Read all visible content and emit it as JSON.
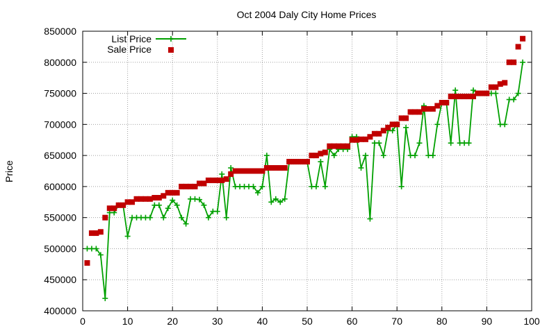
{
  "chart_data": {
    "type": "line",
    "title": "Oct 2004 Daly City Home Prices",
    "xlabel": "",
    "ylabel": "Price",
    "xlim": [
      0,
      100
    ],
    "ylim": [
      400000,
      850000
    ],
    "x_ticks": [
      "0",
      "10",
      "20",
      "30",
      "40",
      "50",
      "60",
      "70",
      "80",
      "90",
      "100"
    ],
    "y_ticks": [
      "400000",
      "450000",
      "500000",
      "550000",
      "600000",
      "650000",
      "700000",
      "750000",
      "800000",
      "850000"
    ],
    "grid": true,
    "legend_position": "top-left",
    "series": [
      {
        "name": "List Price",
        "style": "line-points",
        "color": "#00a000",
        "x": [
          1,
          2,
          3,
          4,
          5,
          6,
          7,
          8,
          9,
          10,
          11,
          12,
          13,
          14,
          15,
          16,
          17,
          18,
          19,
          20,
          21,
          22,
          23,
          24,
          25,
          26,
          27,
          28,
          29,
          30,
          31,
          32,
          33,
          34,
          35,
          36,
          37,
          38,
          39,
          40,
          41,
          42,
          43,
          44,
          45,
          46,
          47,
          48,
          49,
          50,
          51,
          52,
          53,
          54,
          55,
          56,
          57,
          58,
          59,
          60,
          61,
          62,
          63,
          64,
          65,
          66,
          67,
          68,
          69,
          70,
          71,
          72,
          73,
          74,
          75,
          76,
          77,
          78,
          79,
          80,
          81,
          82,
          83,
          84,
          85,
          86,
          87,
          88,
          89,
          90,
          91,
          92,
          93,
          94,
          95,
          96,
          97,
          98
        ],
        "y": [
          500000,
          500000,
          500000,
          490000,
          420000,
          558000,
          558000,
          570000,
          570000,
          520000,
          550000,
          550000,
          550000,
          550000,
          550000,
          570000,
          570000,
          550000,
          565000,
          578000,
          570000,
          550000,
          540000,
          580000,
          580000,
          579000,
          570000,
          550000,
          560000,
          560000,
          620000,
          550000,
          630000,
          600000,
          600000,
          600000,
          600000,
          600000,
          590000,
          600000,
          650000,
          575000,
          580000,
          575000,
          580000,
          640000,
          640000,
          640000,
          640000,
          640000,
          600000,
          600000,
          640000,
          600000,
          660000,
          650000,
          660000,
          660000,
          660000,
          680000,
          680000,
          630000,
          650000,
          548000,
          670000,
          670000,
          650000,
          690000,
          690000,
          700000,
          600000,
          695000,
          650000,
          650000,
          670000,
          730000,
          650000,
          650000,
          700000,
          735000,
          735000,
          670000,
          755000,
          670000,
          670000,
          670000,
          755000,
          750000,
          750000,
          750000,
          750000,
          750000,
          700000,
          700000,
          740000,
          740000,
          750000,
          800000
        ]
      },
      {
        "name": "Sale Price",
        "style": "points",
        "color": "#c00000",
        "x": [
          1,
          2,
          3,
          4,
          5,
          6,
          7,
          8,
          9,
          10,
          11,
          12,
          13,
          14,
          15,
          16,
          17,
          18,
          19,
          20,
          21,
          22,
          23,
          24,
          25,
          26,
          27,
          28,
          29,
          30,
          31,
          32,
          33,
          34,
          35,
          36,
          37,
          38,
          39,
          40,
          41,
          42,
          43,
          44,
          45,
          46,
          47,
          48,
          49,
          50,
          51,
          52,
          53,
          54,
          55,
          56,
          57,
          58,
          59,
          60,
          61,
          62,
          63,
          64,
          65,
          66,
          67,
          68,
          69,
          70,
          71,
          72,
          73,
          74,
          75,
          76,
          77,
          78,
          79,
          80,
          81,
          82,
          83,
          84,
          85,
          86,
          87,
          88,
          89,
          90,
          91,
          92,
          93,
          94,
          95,
          96,
          97,
          98
        ],
        "y": [
          477000,
          525000,
          525000,
          527000,
          550000,
          565000,
          565000,
          570000,
          570000,
          575000,
          575000,
          580000,
          580000,
          580000,
          580000,
          582000,
          582000,
          585000,
          590000,
          590000,
          590000,
          600000,
          600000,
          600000,
          600000,
          605000,
          605000,
          610000,
          610000,
          610000,
          610000,
          612000,
          620000,
          625000,
          625000,
          625000,
          625000,
          625000,
          625000,
          625000,
          630000,
          630000,
          630000,
          630000,
          630000,
          640000,
          640000,
          640000,
          640000,
          640000,
          650000,
          650000,
          653000,
          655000,
          665000,
          665000,
          665000,
          665000,
          665000,
          675000,
          675000,
          676000,
          676000,
          680000,
          685000,
          685000,
          690000,
          695000,
          700000,
          700000,
          710000,
          710000,
          720000,
          720000,
          720000,
          725000,
          725000,
          725000,
          730000,
          735000,
          735000,
          745000,
          745000,
          745000,
          745000,
          745000,
          745000,
          750000,
          750000,
          750000,
          760000,
          760000,
          765000,
          767000,
          800000,
          800000,
          825000,
          838000
        ]
      }
    ]
  }
}
